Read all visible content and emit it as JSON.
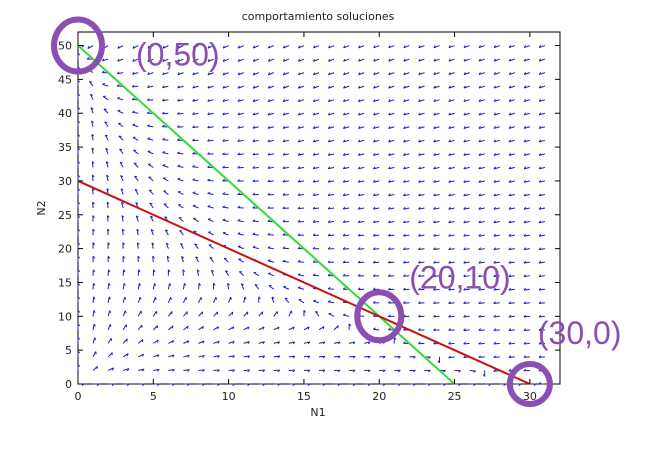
{
  "chart_data": {
    "type": "line",
    "title": "comportamiento soluciones",
    "xlabel": "N1",
    "ylabel": "N2",
    "xlim": [
      0,
      32
    ],
    "ylim": [
      0,
      52
    ],
    "xticks": [
      0,
      5,
      10,
      15,
      20,
      25,
      30
    ],
    "yticks": [
      0,
      5,
      10,
      15,
      20,
      25,
      30,
      35,
      40,
      45,
      50
    ],
    "grid": false,
    "series": [
      {
        "x": [
          0,
          25
        ],
        "y": [
          50,
          0
        ],
        "color": "#33dd33"
      },
      {
        "x": [
          0,
          30
        ],
        "y": [
          30,
          0
        ],
        "color": "#cc1111"
      }
    ],
    "vector_field": {
      "color": "#1a1acc",
      "k1": 30,
      "k2": 50,
      "a12": 1.5,
      "a21": 2.0
    },
    "annotations": [
      {
        "text": "(0,50)",
        "x": 0,
        "y": 50
      },
      {
        "text": "(20,10)",
        "x": 20,
        "y": 10
      },
      {
        "text": "(30,0)",
        "x": 30,
        "y": 0
      }
    ],
    "annotation_color": "#8a4fb0"
  }
}
